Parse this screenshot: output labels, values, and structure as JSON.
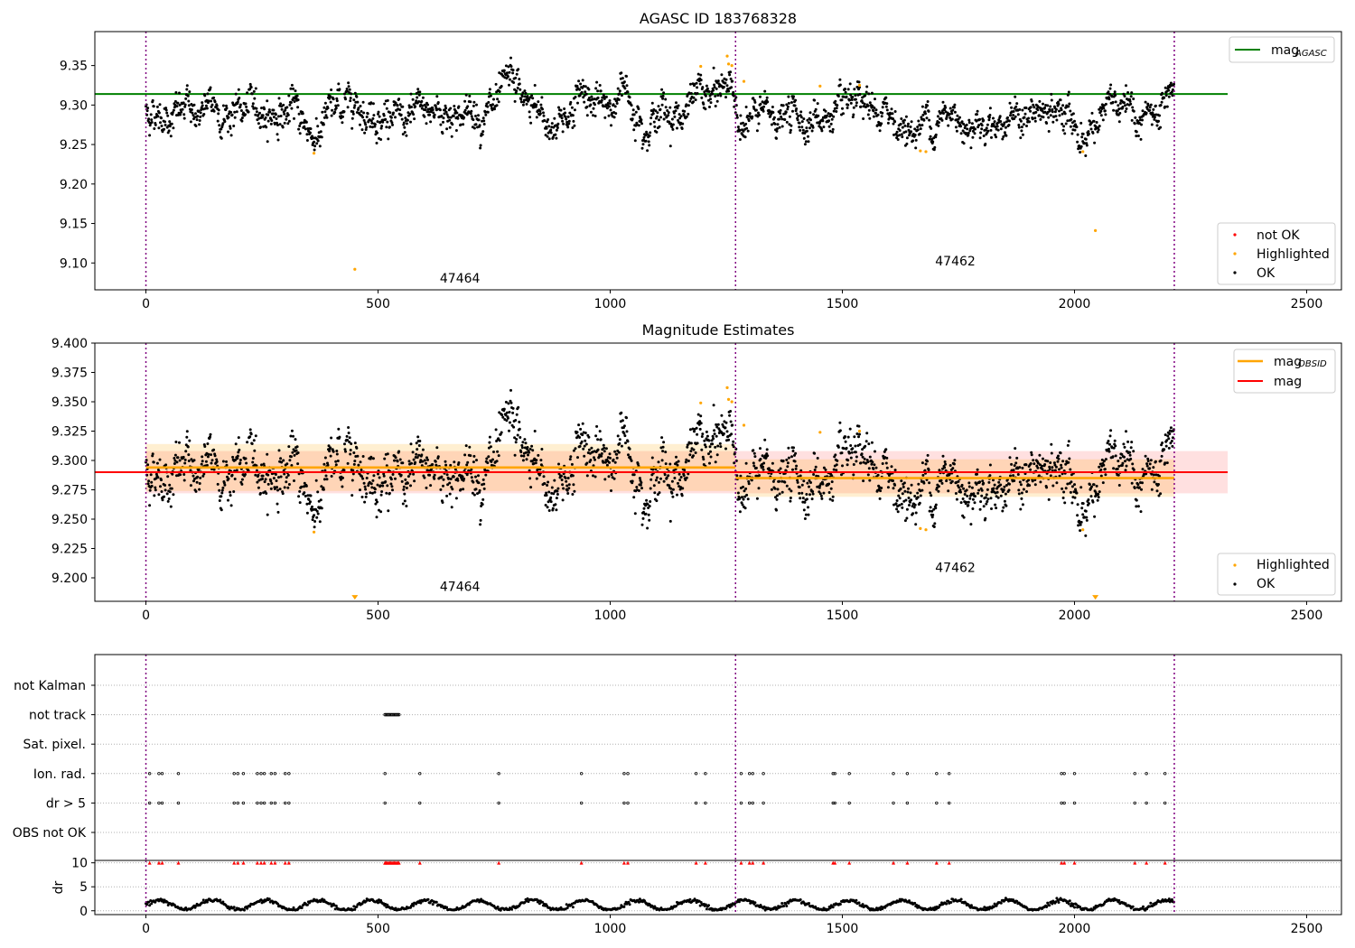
{
  "chart_data": [
    {
      "type": "scatter",
      "title": "AGASC ID 183768328",
      "xlim": [
        -110,
        2575
      ],
      "ylim": [
        9.066,
        9.393
      ],
      "xticks": [
        0,
        500,
        1000,
        1500,
        2000,
        2500
      ],
      "yticks": [
        9.1,
        9.15,
        9.2,
        9.25,
        9.3,
        9.35
      ],
      "ytick_labels": [
        "9.10",
        "9.15",
        "9.20",
        "9.25",
        "9.30",
        "9.35"
      ],
      "obsid_boundaries": [
        0,
        1270,
        2215
      ],
      "obsid_labels": [
        {
          "text": "47464",
          "x": 633,
          "y": 9.075
        },
        {
          "text": "47462",
          "x": 1700,
          "y": 9.097
        }
      ],
      "lines": [
        {
          "name": "mag_AGASC",
          "color": "#008000",
          "y": 9.314,
          "x_range": [
            -110,
            2330
          ]
        }
      ],
      "ok_points": {
        "color": "#000000",
        "count": 2215,
        "segments": [
          {
            "x": [
              0,
              1270
            ],
            "level": 9.292,
            "sigma": 0.015
          },
          {
            "x": [
              1270,
              2215
            ],
            "level": 9.284,
            "sigma": 0.014
          }
        ],
        "bumps": [
          {
            "x": 360,
            "y": 9.258
          },
          {
            "x": 450,
            "y": 9.318
          },
          {
            "x": 560,
            "y": 9.266
          },
          {
            "x": 790,
            "y": 9.322
          },
          {
            "x": 870,
            "y": 9.268
          },
          {
            "x": 945,
            "y": 9.325
          },
          {
            "x": 1030,
            "y": 9.323
          },
          {
            "x": 1200,
            "y": 9.318
          },
          {
            "x": 1250,
            "y": 9.33
          },
          {
            "x": 1650,
            "y": 9.262
          },
          {
            "x": 2020,
            "y": 9.258
          },
          {
            "x": 2070,
            "y": 9.302
          }
        ]
      },
      "highlighted_points": {
        "color": "#ffa500",
        "points": [
          {
            "x": 362,
            "y": 9.239
          },
          {
            "x": 450,
            "y": 9.092
          },
          {
            "x": 1195,
            "y": 9.349
          },
          {
            "x": 1252,
            "y": 9.362
          },
          {
            "x": 1255,
            "y": 9.352
          },
          {
            "x": 1262,
            "y": 9.35
          },
          {
            "x": 1288,
            "y": 9.33
          },
          {
            "x": 1452,
            "y": 9.324
          },
          {
            "x": 1537,
            "y": 9.325
          },
          {
            "x": 1668,
            "y": 9.242
          },
          {
            "x": 1680,
            "y": 9.241
          },
          {
            "x": 2018,
            "y": 9.241
          },
          {
            "x": 2045,
            "y": 9.141
          }
        ]
      },
      "legend_top": {
        "placement": "top-right",
        "entries": [
          {
            "label": "mag",
            "subscript": "AGASC",
            "color": "#008000"
          }
        ]
      },
      "legend_bottom": {
        "placement": "bottom-right",
        "entries": [
          {
            "label": "not OK",
            "color": "#ff0000"
          },
          {
            "label": "Highlighted",
            "color": "#ffa500"
          },
          {
            "label": "OK",
            "color": "#000000"
          }
        ]
      }
    },
    {
      "type": "scatter",
      "title": "Magnitude Estimates",
      "xlim": [
        -110,
        2575
      ],
      "ylim": [
        9.18,
        9.4
      ],
      "xticks": [
        0,
        500,
        1000,
        1500,
        2000,
        2500
      ],
      "yticks": [
        9.2,
        9.225,
        9.25,
        9.275,
        9.3,
        9.325,
        9.35,
        9.375,
        9.4
      ],
      "ytick_labels": [
        "9.200",
        "9.225",
        "9.250",
        "9.275",
        "9.300",
        "9.325",
        "9.350",
        "9.375",
        "9.400"
      ],
      "obsid_boundaries": [
        0,
        1270,
        2215
      ],
      "obsid_labels": [
        {
          "text": "47464",
          "x": 633,
          "y": 9.189
        },
        {
          "text": "47462",
          "x": 1700,
          "y": 9.205
        }
      ],
      "mag": {
        "color": "#ff0000",
        "value": 9.29,
        "band": [
          9.272,
          9.308
        ],
        "x_range": [
          0,
          2330
        ]
      },
      "mag_obsid": {
        "color": "#ffa500",
        "segments": [
          {
            "x": [
              0,
              1270
            ],
            "value": 9.294,
            "band": [
              9.274,
              9.314
            ]
          },
          {
            "x": [
              1270,
              2215
            ],
            "value": 9.285,
            "band": [
              9.269,
              9.301
            ]
          }
        ]
      },
      "highlighted_off_scale": [
        {
          "x": 450,
          "y": 9.183
        },
        {
          "x": 2045,
          "y": 9.183
        }
      ],
      "legend_top": {
        "placement": "top-right",
        "entries": [
          {
            "label": "mag",
            "subscript": "OBSID",
            "color": "#ffa500"
          },
          {
            "label": "mag",
            "color": "#ff0000"
          }
        ]
      },
      "legend_bottom": {
        "placement": "bottom-right",
        "entries": [
          {
            "label": "Highlighted",
            "color": "#ffa500"
          },
          {
            "label": "OK",
            "color": "#000000"
          }
        ]
      }
    },
    {
      "type": "scatter",
      "xlim": [
        -110,
        2575
      ],
      "xticks": [
        0,
        500,
        1000,
        1500,
        2000,
        2500
      ],
      "obsid_boundaries": [
        0,
        1270,
        2215
      ],
      "flag_rows": [
        "not Kalman",
        "not track",
        "Sat. pixel.",
        "Ion. rad.",
        "dr > 5",
        "OBS not OK"
      ],
      "not_track_range": [
        515,
        545
      ],
      "flag_x": [
        8,
        28,
        35,
        70,
        190,
        198,
        210,
        240,
        248,
        255,
        270,
        278,
        300,
        308,
        515,
        590,
        760,
        938,
        1030,
        1038,
        1185,
        1205,
        1282,
        1300,
        1307,
        1330,
        1480,
        1484,
        1515,
        1610,
        1640,
        1703,
        1730,
        1972,
        1978,
        2000,
        2130,
        2155,
        2195
      ],
      "dr": {
        "yticks": [
          0,
          5,
          10
        ],
        "ytick_labels": [
          "0",
          "5",
          "10"
        ],
        "ylabel": "dr",
        "ylim": [
          -0.8,
          10.5
        ],
        "clip_value": 10,
        "typical_range": [
          0.1,
          2.8
        ]
      }
    }
  ]
}
